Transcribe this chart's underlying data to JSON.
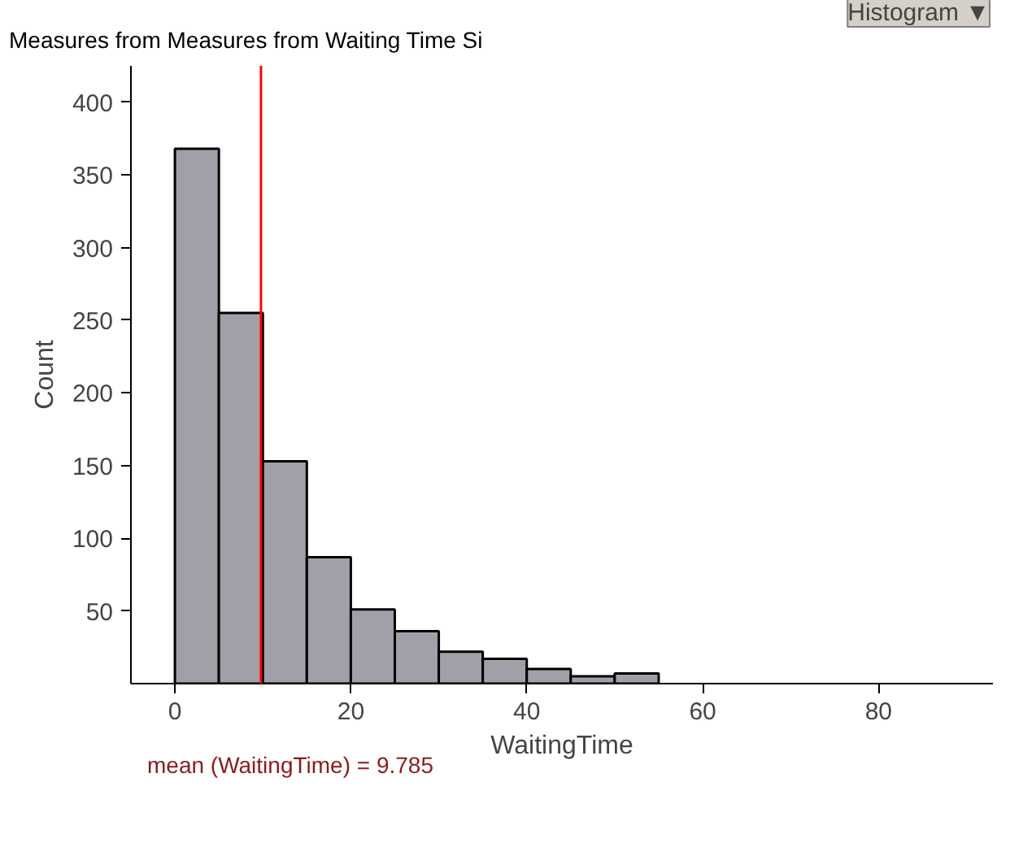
{
  "chart_data": {
    "type": "histogram",
    "title": "Measures from Measures from Waiting Time Si",
    "xlabel": "WaitingTime",
    "ylabel": "Count",
    "bins": [
      0,
      5,
      10,
      15,
      20,
      25,
      30,
      35,
      40,
      45,
      50,
      55
    ],
    "values": [
      368,
      255,
      153,
      87,
      51,
      36,
      22,
      17,
      10,
      5,
      7
    ],
    "color": "#a0a0a8",
    "xlim": [
      -5,
      93
    ],
    "ylim": [
      0,
      425
    ],
    "xticks": [
      0,
      20,
      40,
      60,
      80
    ],
    "yticks": [
      50,
      100,
      150,
      200,
      250,
      300,
      350,
      400
    ],
    "ref_lines": [
      {
        "axis": "x",
        "value": 9.785,
        "color": "#ff0000"
      }
    ],
    "annotations": [
      "mean (WaitingTime) = 9.785",
      "Histogram ▼"
    ],
    "grid": false
  }
}
